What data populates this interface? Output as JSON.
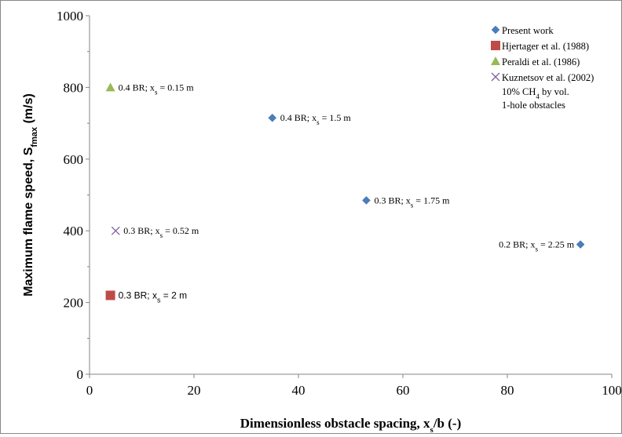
{
  "chart_data": {
    "type": "scatter",
    "title": "",
    "xlabel": {
      "main": "Dimensionless obstacle spacing, x",
      "sub": "s",
      "suffix": "/b (-)"
    },
    "ylabel": {
      "main": "Maximum flame speed, S",
      "sub": "fmax",
      "suffix": " (m/s)"
    },
    "xlim": [
      0,
      100
    ],
    "ylim": [
      0,
      1000
    ],
    "x_ticks": [
      0,
      20,
      40,
      60,
      80,
      100
    ],
    "x_tick_labels": [
      "0",
      "20",
      "40",
      "60",
      "80",
      "100"
    ],
    "y_ticks": [
      0,
      200,
      400,
      600,
      800,
      1000
    ],
    "y_tick_labels": [
      "0",
      "200",
      "400",
      "600",
      "800",
      "1000"
    ],
    "grid": false,
    "legend_position": "top-right",
    "series": [
      {
        "name": "Present work",
        "marker": "diamond",
        "color": "#4a7ebb",
        "points": [
          {
            "x": 35,
            "y": 715,
            "label": {
              "pre": "0.4 BR; x",
              "sub": "s",
              "post": " = 1.5 m"
            }
          },
          {
            "x": 53,
            "y": 485,
            "label": {
              "pre": "0.3 BR; x",
              "sub": "s",
              "post": " = 1.75 m"
            }
          },
          {
            "x": 94,
            "y": 362,
            "label": {
              "pre": "0.2 BR; x",
              "sub": "s",
              "post": " = 2.25 m"
            }
          }
        ]
      },
      {
        "name": "Hjertager et al. (1988)",
        "marker": "square",
        "color": "#be4b48",
        "points": [
          {
            "x": 4,
            "y": 220,
            "label": {
              "pre": "0.3 BR; x",
              "sub": "s",
              "post": " = 2 m"
            }
          }
        ]
      },
      {
        "name": "Peraldi et al. (1986)",
        "marker": "triangle",
        "color": "#98b954",
        "points": [
          {
            "x": 4,
            "y": 800,
            "label": {
              "pre": "0.4 BR; x",
              "sub": "s",
              "post": " = 0.15 m"
            }
          }
        ]
      },
      {
        "name": "Kuznetsov et al. (2002)",
        "marker": "x",
        "color": "#7d60a0",
        "points": [
          {
            "x": 5,
            "y": 400,
            "label": {
              "pre": "0.3 BR;  x",
              "sub": "s",
              "post": " = 0.52 m"
            }
          }
        ]
      }
    ],
    "annotations": [
      {
        "pre": "10% CH",
        "sub": "4",
        "post": " by vol."
      },
      {
        "pre": "1-hole obstacles",
        "sub": "",
        "post": ""
      }
    ]
  }
}
